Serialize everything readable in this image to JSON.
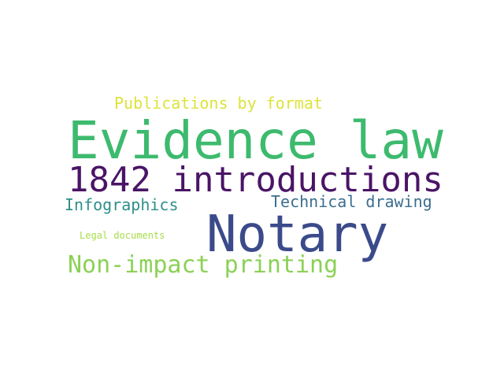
{
  "words": [
    {
      "key": "evidence",
      "text": "Evidence law",
      "color": "#3dba6e"
    },
    {
      "key": "notary",
      "text": "Notary",
      "color": "#3b4a8a"
    },
    {
      "key": "1842",
      "text": "1842 introductions",
      "color": "#4a1466"
    },
    {
      "key": "pubs",
      "text": "Publications by format",
      "color": "#dde33a"
    },
    {
      "key": "nonimpact",
      "text": "Non-impact printing",
      "color": "#8bd156"
    },
    {
      "key": "infog",
      "text": "Infographics",
      "color": "#2e8f8a"
    },
    {
      "key": "technical",
      "text": "Technical drawing",
      "color": "#3b6e8e"
    },
    {
      "key": "legal",
      "text": "Legal documents",
      "color": "#a8dc4a"
    }
  ]
}
